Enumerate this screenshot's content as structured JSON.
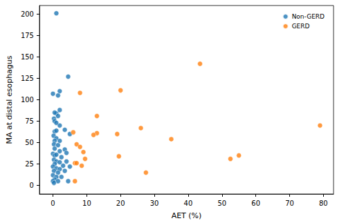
{
  "chart_data": {
    "type": "scatter",
    "x_label": "AET (%)",
    "y_label": "MA at distal esophagus",
    "xlim": [
      -4,
      83
    ],
    "xticks": [
      0,
      10,
      20,
      30,
      40,
      50,
      60,
      70,
      80
    ],
    "ylim": [
      -10,
      210
    ],
    "yticks": [
      0,
      25,
      50,
      75,
      100,
      125,
      150,
      175,
      200
    ],
    "grid": false,
    "legend": "upper right",
    "marker": "circle",
    "series": [
      {
        "name": "Non-GERD",
        "color": "#1f77b4",
        "x": [
          1,
          4.5,
          0,
          2,
          1.5,
          2,
          1,
          0.5,
          1.5,
          0.3,
          0.5,
          2,
          1,
          3.5,
          0.5,
          0.2,
          5,
          1,
          0.5,
          2,
          0.3,
          1.5,
          0.5,
          3.5,
          4,
          2,
          0,
          0.5,
          1,
          2.5,
          0.3,
          1,
          2,
          4,
          0.5,
          3,
          0,
          1,
          2,
          0.3,
          1.5,
          3.5,
          0,
          1,
          2.5,
          0.5,
          0,
          1.5,
          4.5,
          0.3,
          5,
          1
        ],
        "y": [
          201,
          127,
          107,
          110,
          105,
          88,
          84,
          85,
          81,
          78,
          75,
          70,
          73,
          65,
          63,
          58,
          60,
          55,
          52,
          52,
          48,
          47,
          43,
          42,
          38,
          40,
          37,
          35,
          36,
          33,
          30,
          28,
          27,
          28,
          25,
          23,
          22,
          20,
          19,
          17,
          15,
          17,
          12,
          10,
          10,
          7,
          5,
          5,
          5,
          3,
          22,
          64
        ]
      },
      {
        "name": "GERD",
        "color": "#ff7f0e",
        "x": [
          43.5,
          79,
          20,
          8,
          13,
          26,
          6,
          13,
          19,
          12,
          35,
          55,
          52.5,
          7,
          8,
          9,
          19.5,
          9.5,
          27.5,
          6.5,
          7,
          8.5,
          6.5
        ],
        "y": [
          142,
          70,
          111,
          108,
          81,
          67,
          62,
          61,
          60,
          59,
          54,
          35,
          31,
          48,
          45,
          39,
          34,
          31,
          15,
          26,
          26,
          23,
          5
        ]
      }
    ]
  }
}
